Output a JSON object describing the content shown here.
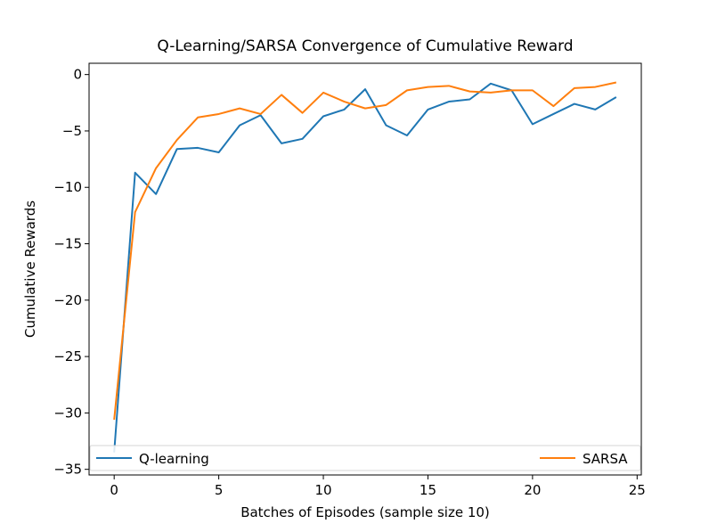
{
  "chart_data": {
    "type": "line",
    "title": "Q-Learning/SARSA Convergence of Cumulative Reward",
    "xlabel": "Batches of Episodes (sample size 10)",
    "ylabel": "Cumulative Rewards",
    "xlim": [
      -1.2,
      25.2
    ],
    "ylim": [
      -35.5,
      1.0
    ],
    "xticks": [
      0,
      5,
      10,
      15,
      20,
      25
    ],
    "yticks": [
      0,
      -5,
      -10,
      -15,
      -20,
      -25,
      -30,
      -35
    ],
    "xtick_labels": [
      "0",
      "5",
      "10",
      "15",
      "20",
      "25"
    ],
    "ytick_labels": [
      "0",
      "−5",
      "−10",
      "−15",
      "−20",
      "−25",
      "−30",
      "−35"
    ],
    "grid": false,
    "legend_placement": "lower-center (spanning full width, two columns)",
    "x": [
      0,
      1,
      2,
      3,
      4,
      5,
      6,
      7,
      8,
      9,
      10,
      11,
      12,
      13,
      14,
      15,
      16,
      17,
      18,
      19,
      20,
      21,
      22,
      23,
      24
    ],
    "series": [
      {
        "name": "Q-learning",
        "color": "#1f77b4",
        "values": [
          -33.5,
          -8.7,
          -10.6,
          -6.6,
          -6.5,
          -6.9,
          -4.5,
          -3.6,
          -6.1,
          -5.7,
          -3.7,
          -3.1,
          -1.3,
          -4.5,
          -5.4,
          -3.1,
          -2.4,
          -2.2,
          -0.8,
          -1.4,
          -4.4,
          -3.5,
          -2.6,
          -3.1,
          -2.0
        ]
      },
      {
        "name": "SARSA",
        "color": "#ff7f0e",
        "values": [
          -30.6,
          -12.2,
          -8.3,
          -5.8,
          -3.8,
          -3.5,
          -3.0,
          -3.5,
          -1.8,
          -3.4,
          -1.6,
          -2.4,
          -3.0,
          -2.7,
          -1.4,
          -1.1,
          -1.0,
          -1.5,
          -1.6,
          -1.4,
          -1.4,
          -2.8,
          -1.2,
          -1.1,
          -0.7
        ]
      }
    ]
  }
}
